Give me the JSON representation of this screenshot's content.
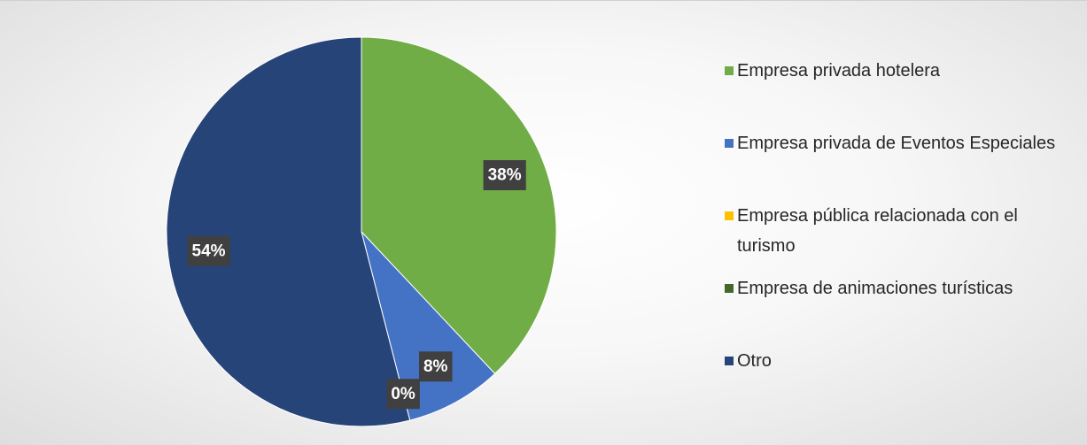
{
  "chart_data": {
    "type": "pie",
    "categories": [
      "Empresa privada hotelera",
      "Empresa privada de Eventos Especiales",
      "Empresa pública relacionada con el turismo",
      "Empresa de animaciones turísticas",
      "Otro"
    ],
    "values": [
      38,
      8,
      0,
      0,
      54
    ],
    "value_labels": [
      "38%",
      "8%",
      "0%",
      null,
      "54%"
    ],
    "colors": [
      "#70ad47",
      "#4472c4",
      "#ffc000",
      "#43682b",
      "#264478"
    ],
    "legend": "right"
  }
}
